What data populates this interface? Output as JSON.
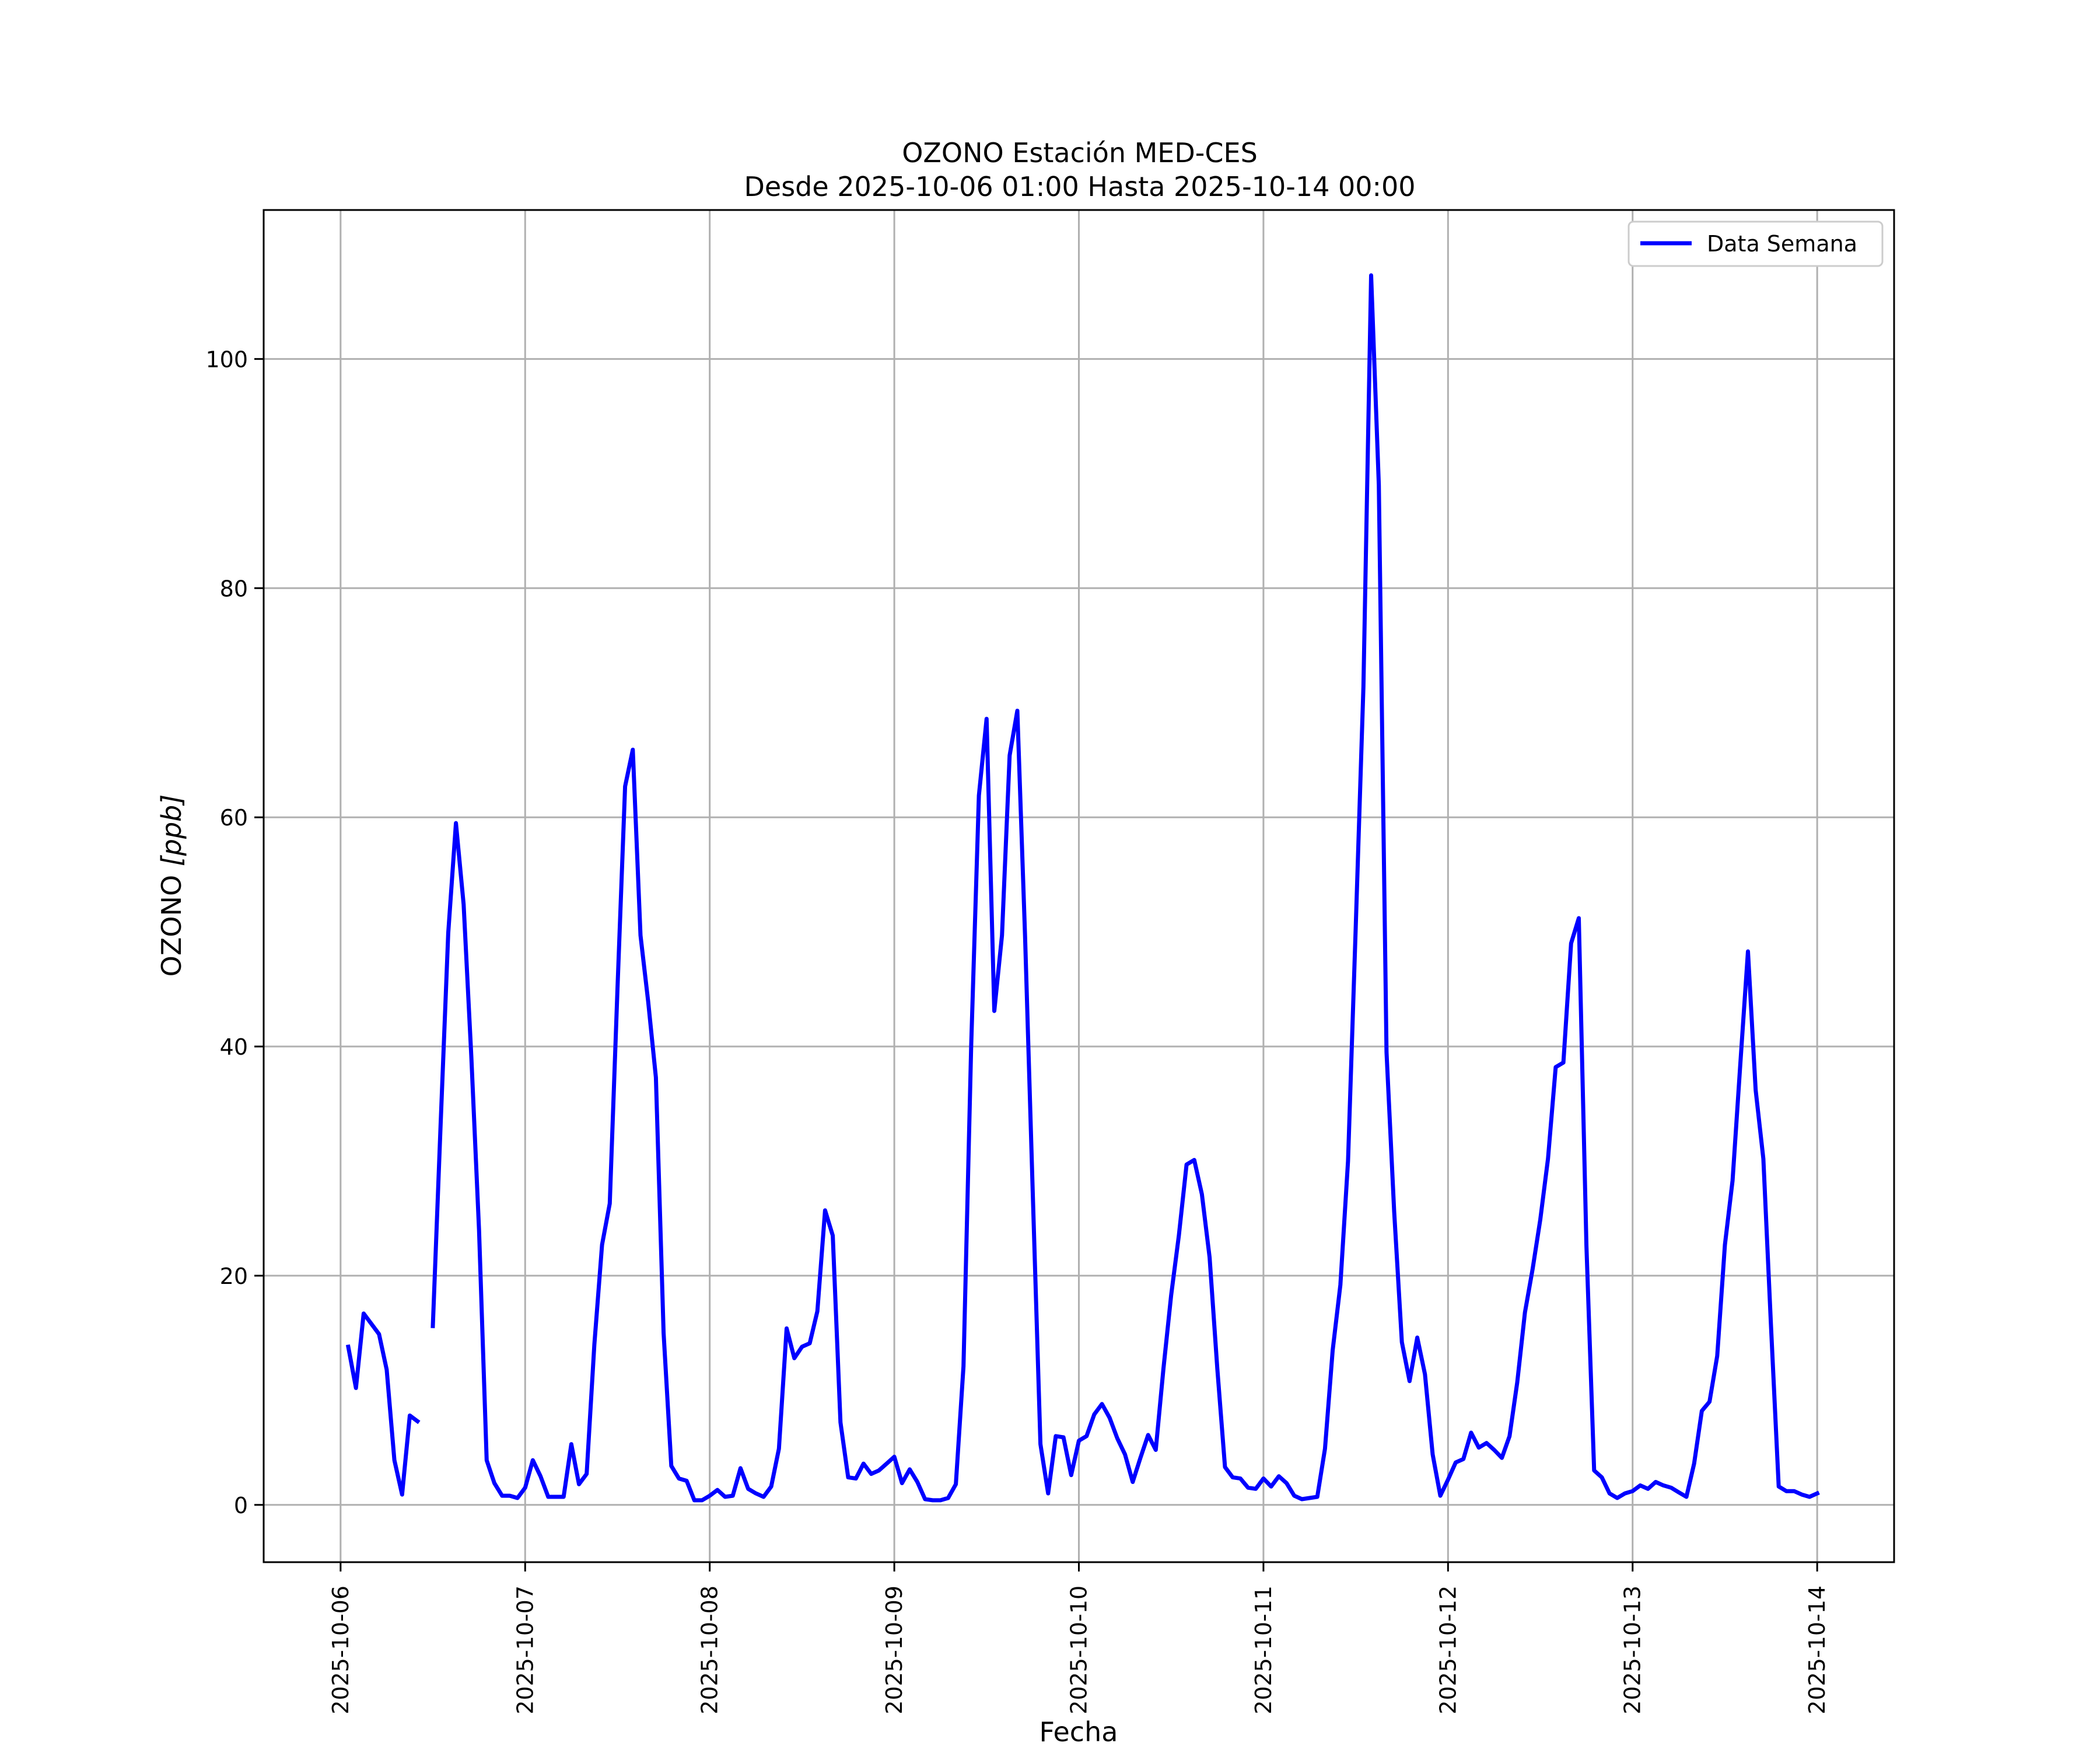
{
  "chart_data": {
    "type": "line",
    "title": "OZONO Estación MED-CES",
    "subtitle": "Desde 2025-10-06 01:00 Hasta 2025-10-14 00:00",
    "xlabel": "Fecha",
    "ylabel_main": "OZONO ",
    "ylabel_unit": "[ppb]",
    "xlim": [
      "2025-10-05 14:00",
      "2025-10-14 10:00"
    ],
    "ylim": [
      -5,
      113
    ],
    "grid": true,
    "legend_position": "top-right",
    "x_ticks": [
      "2025-10-06",
      "2025-10-07",
      "2025-10-08",
      "2025-10-09",
      "2025-10-10",
      "2025-10-11",
      "2025-10-12",
      "2025-10-13",
      "2025-10-14"
    ],
    "y_ticks": [
      0,
      20,
      40,
      60,
      80,
      100
    ],
    "series": [
      {
        "name": "Data Semana",
        "color": "#0000ff",
        "start": "2025-10-06 01:00",
        "step_minutes": 60,
        "values": [
          13.8,
          10.2,
          16.7,
          15.8,
          14.9,
          11.8,
          3.9,
          0.9,
          7.8,
          7.3,
          null,
          15.6,
          33.0,
          49.9,
          59.5,
          52.4,
          39.1,
          24.0,
          3.9,
          1.9,
          0.8,
          0.8,
          0.6,
          1.5,
          3.9,
          2.5,
          0.7,
          0.7,
          0.7,
          5.3,
          1.8,
          2.7,
          14.0,
          22.7,
          26.3,
          45.0,
          62.7,
          65.9,
          49.7,
          43.9,
          37.3,
          15.0,
          3.4,
          2.3,
          2.1,
          0.4,
          0.4,
          0.8,
          1.3,
          0.7,
          0.8,
          3.2,
          1.4,
          1.0,
          0.7,
          1.6,
          4.9,
          15.4,
          12.8,
          13.8,
          14.1,
          16.9,
          25.7,
          23.5,
          7.2,
          2.4,
          2.3,
          3.6,
          2.7,
          3.0,
          3.6,
          4.2,
          1.9,
          3.1,
          2.0,
          0.5,
          0.4,
          0.4,
          0.6,
          1.8,
          12.1,
          40.1,
          61.9,
          68.6,
          43.1,
          49.7,
          65.4,
          69.3,
          49.7,
          27.3,
          5.3,
          1.0,
          6.0,
          5.9,
          2.6,
          5.6,
          6.0,
          7.9,
          8.8,
          7.6,
          5.8,
          4.4,
          2.0,
          4.1,
          6.1,
          4.8,
          11.9,
          18.3,
          23.5,
          29.7,
          30.1,
          27.1,
          21.6,
          11.9,
          3.3,
          2.4,
          2.3,
          1.5,
          1.4,
          2.3,
          1.6,
          2.5,
          1.9,
          0.8,
          0.5,
          0.6,
          0.7,
          4.9,
          13.5,
          19.2,
          30.0,
          50.4,
          71.4,
          107.3,
          89.0,
          39.5,
          25.6,
          14.2,
          10.8,
          14.6,
          11.4,
          4.4,
          0.8,
          2.2,
          3.7,
          4.0,
          6.3,
          5.0,
          5.4,
          4.8,
          4.1,
          6.0,
          10.7,
          16.8,
          20.6,
          24.9,
          30.2,
          38.2,
          38.6,
          49.0,
          51.2,
          22.6,
          3.0,
          2.4,
          1.0,
          0.6,
          1.0,
          1.2,
          1.7,
          1.4,
          2.0,
          1.7,
          1.5,
          1.1,
          0.7,
          3.6,
          8.2,
          9.0,
          13.0,
          22.7,
          28.3,
          38.4,
          48.3,
          36.2,
          30.2,
          15.5,
          1.6,
          1.2,
          1.2,
          0.9,
          0.7,
          1.0
        ]
      }
    ]
  }
}
